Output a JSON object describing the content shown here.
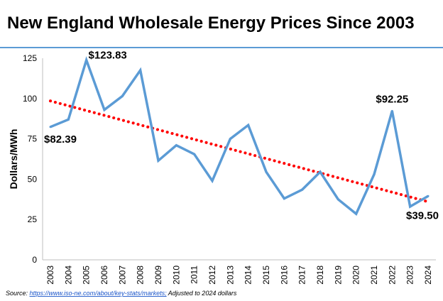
{
  "chart_data": {
    "type": "line",
    "title": "New England Wholesale Energy Prices Since 2003",
    "ylabel": "Dollars/MWh",
    "xlabel": "",
    "ylim": [
      0,
      125
    ],
    "yticks": [
      "0",
      "25",
      "50",
      "75",
      "100",
      "125"
    ],
    "grid": false,
    "categories": [
      "2003",
      "2004",
      "2005",
      "2006",
      "2007",
      "2008",
      "2009",
      "2010",
      "2011",
      "2012",
      "2013",
      "2014",
      "2015",
      "2016",
      "2017",
      "2018",
      "2019",
      "2020",
      "2021",
      "2022",
      "2023",
      "2024"
    ],
    "series": [
      {
        "values": [
          82.39,
          87,
          123.83,
          93,
          101.5,
          117.5,
          61.5,
          71,
          65.5,
          49,
          75,
          83.5,
          54.5,
          38,
          43.5,
          54.5,
          37.5,
          28.5,
          53,
          92.25,
          33,
          39.5
        ],
        "color": "#5b9bd5"
      }
    ],
    "trendline": {
      "style": "dotted",
      "color": "#ff0000",
      "start": 98.5,
      "end": 36
    },
    "annotations": [
      {
        "text": "$82.39",
        "index": 0
      },
      {
        "text": "$123.83",
        "index": 2
      },
      {
        "text": "$92.25",
        "index": 19
      },
      {
        "text": "$39.50",
        "index": 21
      }
    ],
    "header_rule_color": "#5b9bd5"
  },
  "source": {
    "prefix": "Source: ",
    "link": "https://www.iso-ne.com/about/key-stats/markets;",
    "suffix": " Adjusted to 2024 dollars"
  }
}
